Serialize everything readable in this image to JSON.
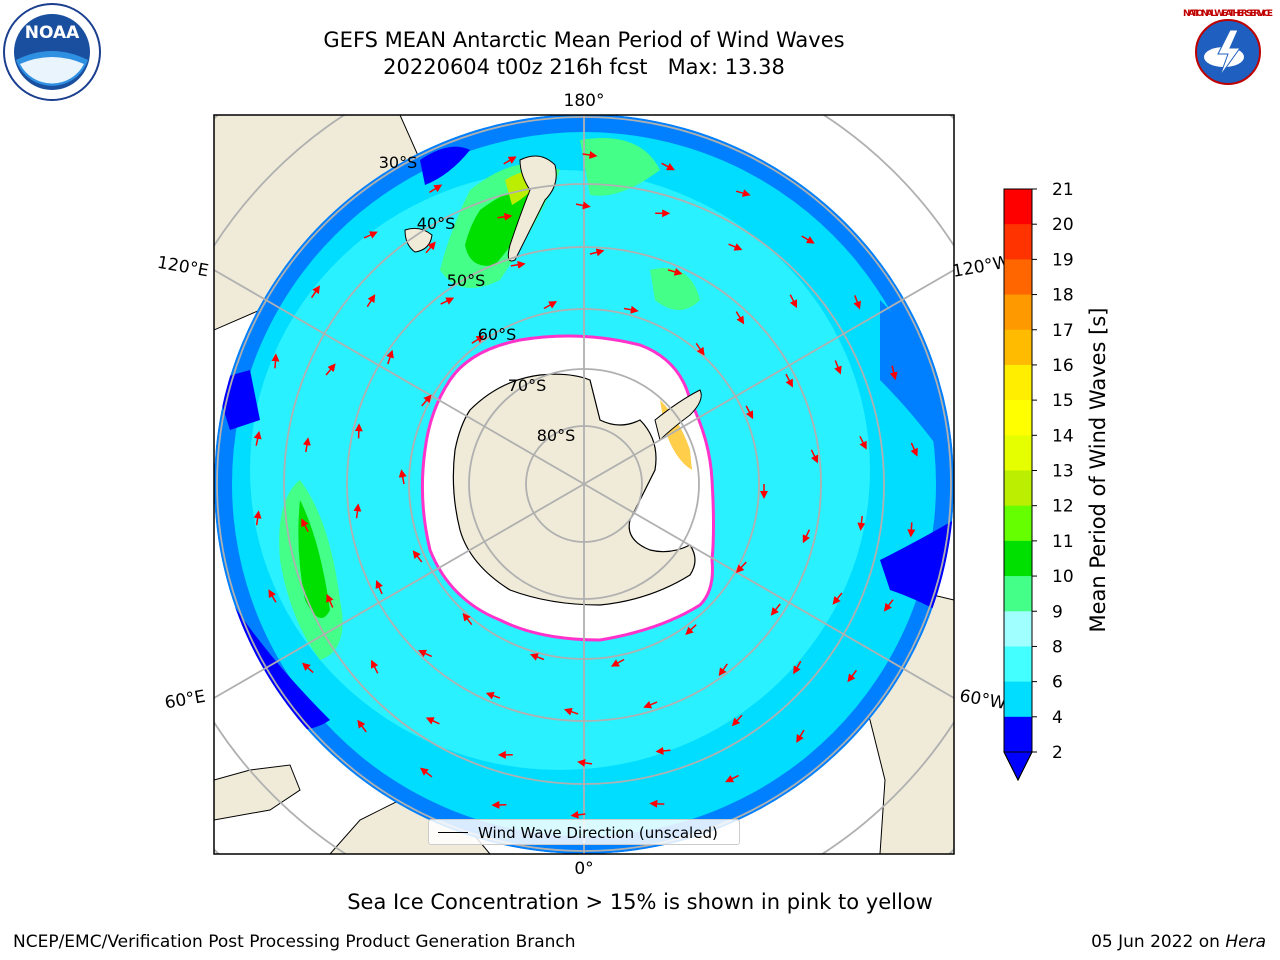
{
  "title": {
    "line1": "GEFS MEAN Antarctic Mean Period of Wind Waves",
    "line2": "20220604 t00z 216h fcst   Max: 13.38"
  },
  "map": {
    "projection": "south-polar-stereographic",
    "lon_labels": {
      "top": "180°",
      "upper_left": "120°E",
      "upper_right": "120°W",
      "lower_left": "60°E",
      "lower_right": "60°W",
      "bottom": "0°"
    },
    "lat_labels": [
      "30°S",
      "40°S",
      "50°S",
      "60°S",
      "70°S",
      "80°S"
    ],
    "legend": {
      "label": "Wind Wave Direction (unscaled)"
    },
    "colors": {
      "land": "#efebd8",
      "sea_ice": "#ffffff",
      "ice_edge": "#ff33cc",
      "arrows": "#ff0000"
    }
  },
  "colorbar": {
    "label": "Mean Period of Wind Waves [s]",
    "ticks": [
      "2",
      "4",
      "6",
      "8",
      "9",
      "10",
      "11",
      "12",
      "13",
      "14",
      "15",
      "16",
      "17",
      "18",
      "19",
      "20",
      "21"
    ],
    "bins": [
      {
        "from": 2,
        "to": 3,
        "color": "#0000ff"
      },
      {
        "from": 3,
        "to": 4,
        "color": "#0080ff"
      },
      {
        "from": 4,
        "to": 6,
        "color": "#00ddff"
      },
      {
        "from": 6,
        "to": 8,
        "color": "#44ffff"
      },
      {
        "from": 8,
        "to": 9,
        "color": "#a0ffff"
      },
      {
        "from": 9,
        "to": 10,
        "color": "#44ff88"
      },
      {
        "from": 10,
        "to": 11,
        "color": "#00e000"
      },
      {
        "from": 11,
        "to": 12,
        "color": "#66ff00"
      },
      {
        "from": 12,
        "to": 13,
        "color": "#bbee00"
      },
      {
        "from": 13,
        "to": 14,
        "color": "#e6ff00"
      },
      {
        "from": 14,
        "to": 15,
        "color": "#ffff00"
      },
      {
        "from": 15,
        "to": 16,
        "color": "#ffee00"
      },
      {
        "from": 16,
        "to": 17,
        "color": "#ffbb00"
      },
      {
        "from": 17,
        "to": 18,
        "color": "#ff9900"
      },
      {
        "from": 18,
        "to": 19,
        "color": "#ff6600"
      },
      {
        "from": 19,
        "to": 20,
        "color": "#ff3300"
      },
      {
        "from": 20,
        "to": 21,
        "color": "#ff0000"
      }
    ],
    "extend_min_color": "#0000ff"
  },
  "footer": {
    "note": "Sea Ice Concentration > 15% is shown in pink to yellow",
    "credit_left": "NCEP/EMC/Verification Post Processing Product Generation Branch",
    "date_text": "05 Jun 2022 on ",
    "host": "Hera"
  },
  "logos": {
    "noaa_text": "NOAA",
    "nws_text": "NATIONAL WEATHER SERVICE"
  }
}
